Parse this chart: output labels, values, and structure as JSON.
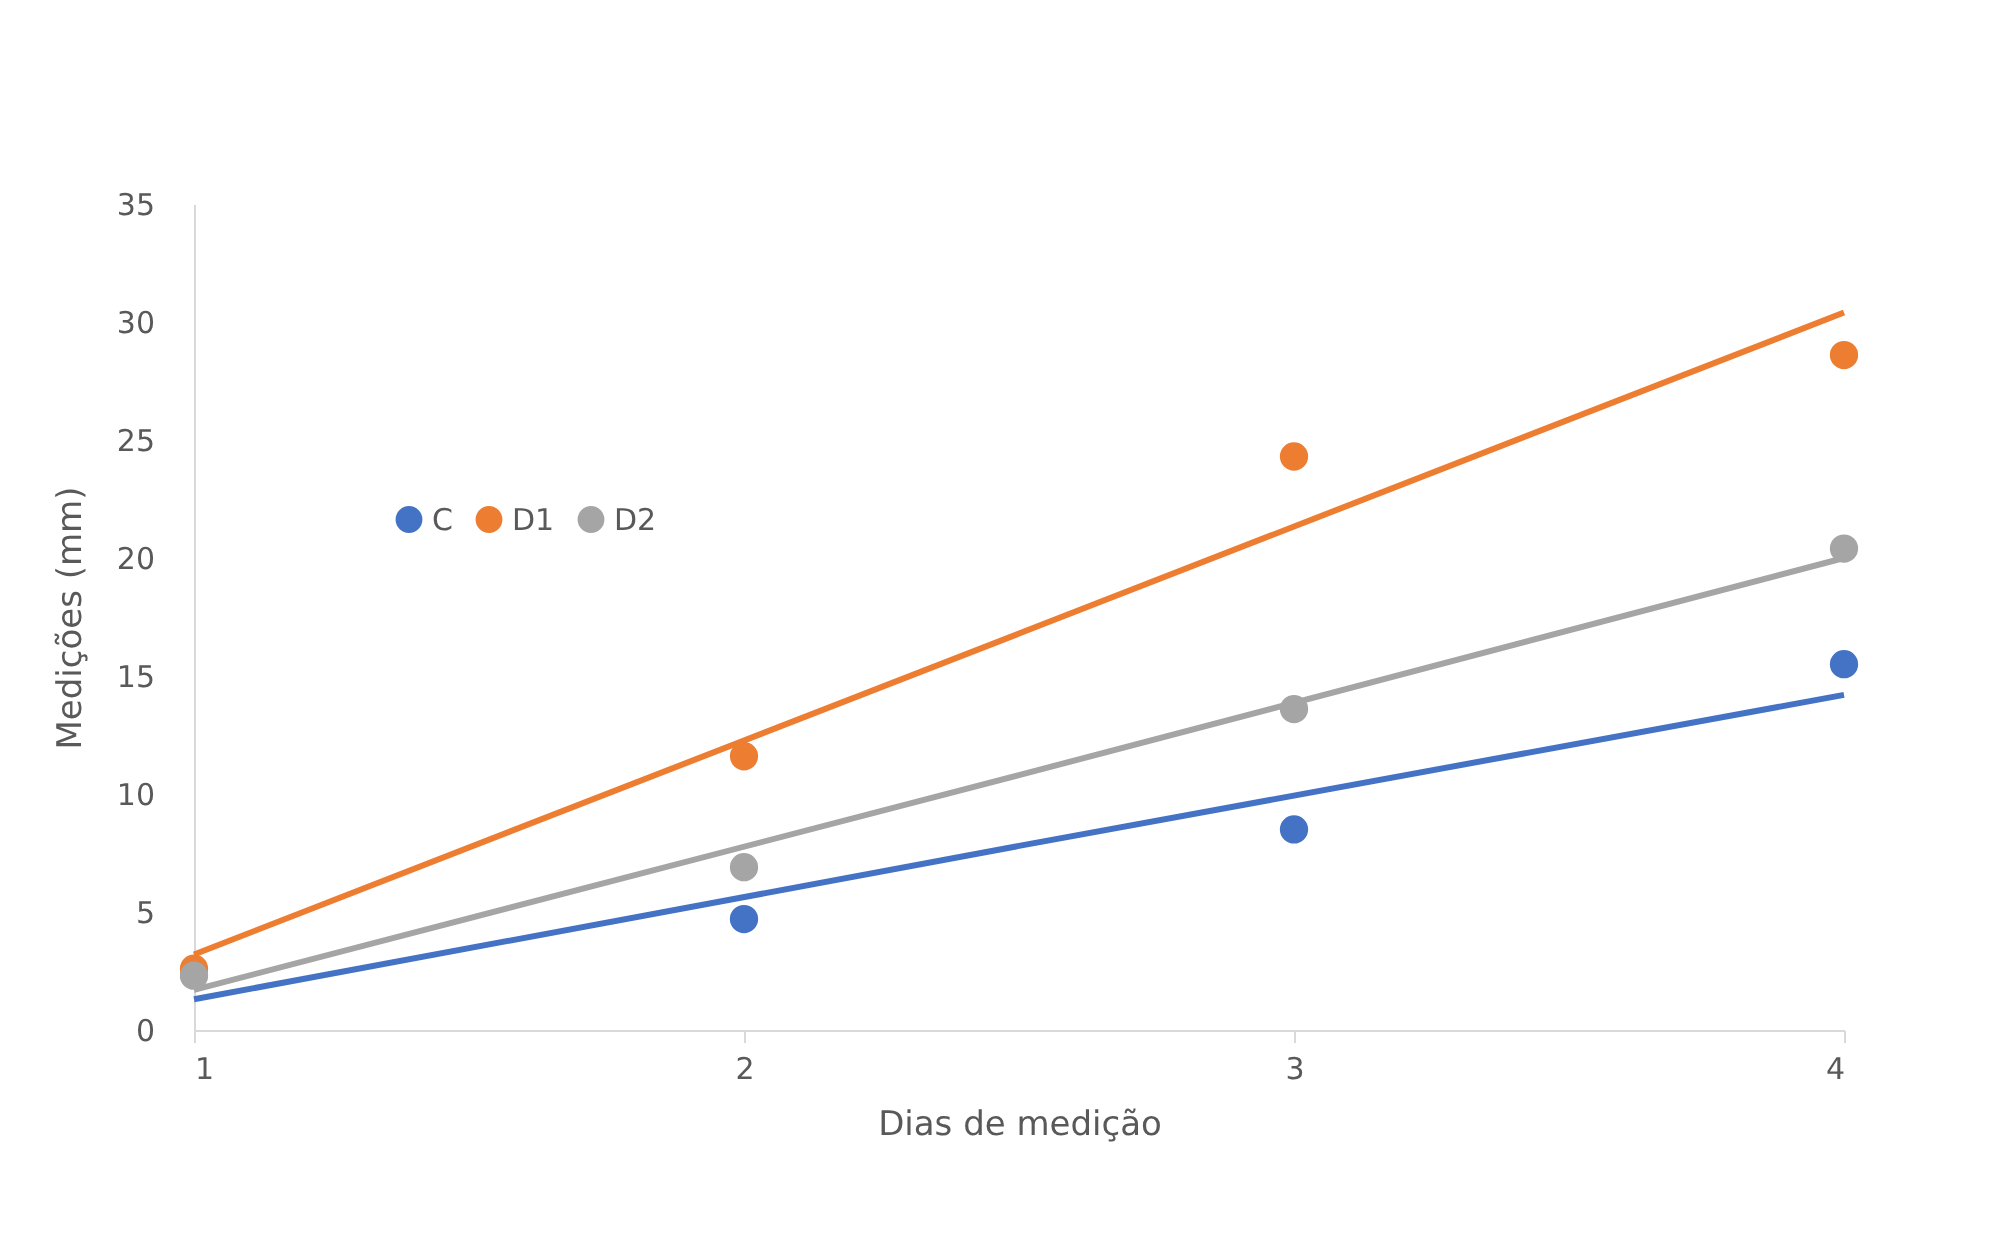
{
  "chart_data": {
    "type": "scatter",
    "xlabel": "Dias de medição",
    "ylabel": "Medições (mm)",
    "x": [
      1,
      2,
      3,
      4
    ],
    "series": [
      {
        "name": "C",
        "color": "#4472c4",
        "values": [
          null,
          4.7,
          8.5,
          15.5
        ]
      },
      {
        "name": "D1",
        "color": "#ed7d31",
        "values": [
          2.6,
          11.6,
          24.3,
          28.6
        ]
      },
      {
        "name": "D2",
        "color": "#a5a5a5",
        "values": [
          2.3,
          6.9,
          13.6,
          20.4
        ]
      },
      {
        "type": "line",
        "marker": "none",
        "color": "#4472c4",
        "x": [
          1,
          2.5,
          4
        ],
        "values": [
          1.3,
          7.8,
          14.2
        ]
      },
      {
        "type": "line",
        "marker": "none",
        "color": "#ed7d31",
        "x": [
          1,
          2.5,
          4
        ],
        "values": [
          3.2,
          16.8,
          30.4
        ]
      },
      {
        "type": "line",
        "marker": "none",
        "color": "#a5a5a5",
        "x": [
          1,
          2.5,
          4
        ],
        "values": [
          1.7,
          10.8,
          20.0
        ]
      }
    ],
    "xlim": [
      1,
      4
    ],
    "xticks": [
      1,
      2,
      3,
      4
    ],
    "ylim": [
      0,
      35
    ],
    "yticks": [
      0,
      5,
      10,
      15,
      20,
      25,
      30,
      35
    ],
    "grid": false,
    "legend": "left",
    "marker": "circle"
  }
}
